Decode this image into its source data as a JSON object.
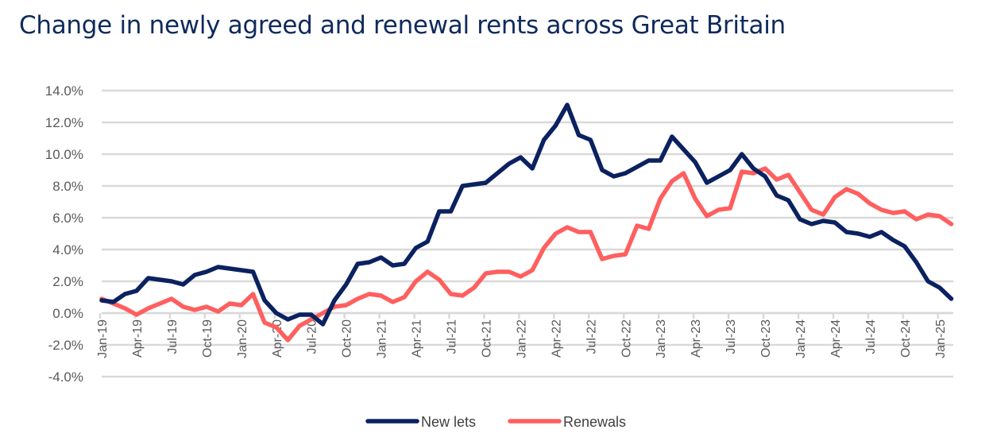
{
  "title": "Change in newly agreed and renewal rents across Great Britain",
  "chart_data": {
    "type": "line",
    "title": "Change in newly agreed and renewal rents across Great Britain",
    "xlabel": "",
    "ylabel": "",
    "ylim": [
      -4,
      14
    ],
    "yticks": [
      "-4.0%",
      "-2.0%",
      "0.0%",
      "2.0%",
      "4.0%",
      "6.0%",
      "8.0%",
      "10.0%",
      "12.0%",
      "14.0%"
    ],
    "xticks": [
      "Jan-19",
      "Apr-19",
      "Jul-19",
      "Oct-19",
      "Jan-20",
      "Apr-20",
      "Jul-20",
      "Oct-20",
      "Jan-21",
      "Apr-21",
      "Jul-21",
      "Oct-21",
      "Jan-22",
      "Apr-22",
      "Jul-22",
      "Oct-22",
      "Jan-23",
      "Apr-23",
      "Jul-23",
      "Oct-23",
      "Jan-24",
      "Apr-24",
      "Jul-24",
      "Oct-24",
      "Jan-25"
    ],
    "x_start": "Jan-19",
    "x_end": "Feb-25",
    "x_frequency": "monthly",
    "grid": true,
    "legend": "bottom",
    "series": [
      {
        "name": "New lets",
        "color": "#0b2160",
        "values": [
          0.8,
          0.7,
          1.2,
          1.4,
          2.2,
          2.1,
          2.0,
          1.8,
          2.4,
          2.6,
          2.9,
          2.8,
          2.7,
          2.6,
          0.8,
          0.0,
          -0.4,
          -0.1,
          -0.1,
          -0.7,
          0.8,
          1.8,
          3.1,
          3.2,
          3.5,
          3.0,
          3.1,
          4.1,
          4.5,
          6.4,
          6.4,
          8.0,
          8.1,
          8.2,
          8.8,
          9.4,
          9.8,
          9.1,
          10.9,
          11.8,
          13.1,
          11.2,
          10.9,
          9.0,
          8.6,
          8.8,
          9.2,
          9.6,
          9.6,
          11.1,
          10.3,
          9.5,
          8.2,
          8.6,
          9.0,
          10.0,
          9.1,
          8.6,
          7.4,
          7.1,
          5.9,
          5.6,
          5.8,
          5.7,
          5.1,
          5.0,
          4.8,
          5.1,
          4.6,
          4.2,
          3.2,
          2.0,
          1.6,
          0.9
        ]
      },
      {
        "name": "Renewals",
        "color": "#ff5f5f",
        "values": [
          0.9,
          0.6,
          0.3,
          -0.1,
          0.3,
          0.6,
          0.9,
          0.4,
          0.2,
          0.4,
          0.1,
          0.6,
          0.5,
          1.2,
          -0.6,
          -0.9,
          -1.7,
          -0.8,
          -0.4,
          0.0,
          0.4,
          0.5,
          0.9,
          1.2,
          1.1,
          0.7,
          1.0,
          2.0,
          2.6,
          2.1,
          1.2,
          1.1,
          1.6,
          2.5,
          2.6,
          2.6,
          2.3,
          2.7,
          4.1,
          5.0,
          5.4,
          5.1,
          5.1,
          3.4,
          3.6,
          3.7,
          5.5,
          5.3,
          7.2,
          8.3,
          8.8,
          7.2,
          6.1,
          6.5,
          6.6,
          8.9,
          8.8,
          9.1,
          8.4,
          8.7,
          7.6,
          6.5,
          6.2,
          7.3,
          7.8,
          7.5,
          6.9,
          6.5,
          6.3,
          6.4,
          5.9,
          6.2,
          6.1,
          5.6
        ]
      }
    ]
  }
}
